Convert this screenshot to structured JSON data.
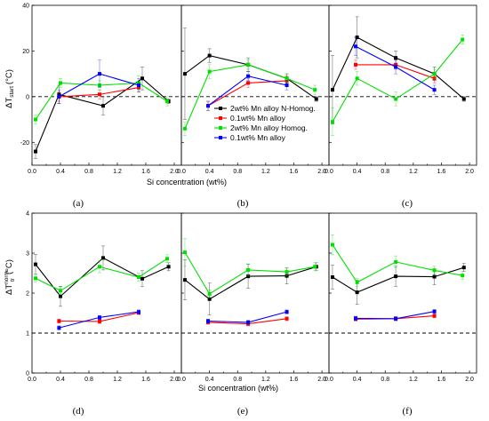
{
  "figure": {
    "top_ylabel": "ΔT",
    "top_ylabel_sub": "start",
    "top_ylabel_unit": "(°C)",
    "bottom_ylabel": "ΔT",
    "bottom_ylabel_sup": "norm",
    "bottom_ylabel_sub": "tr",
    "bottom_ylabel_unit": "(°C)",
    "xlabel": "Si concentration (wt%)",
    "panel_labels": [
      "(a)",
      "(b)",
      "(c)",
      "(d)",
      "(e)",
      "(f)"
    ]
  },
  "colors": {
    "2wt% Mn alloy N-Homog.": "#000000",
    "0.1wt% Mn alloy": "#ff0000",
    "2wt% Mn alloy Homog.": "#00e000",
    "0.1wt% Mn alloy ": "#0000ff"
  },
  "legend": {
    "entries": [
      {
        "label": "2wt% Mn alloy N-Homog.",
        "color": "#000000"
      },
      {
        "label": "0.1wt% Mn alloy",
        "color": "#ff0000"
      },
      {
        "label": "2wt% Mn alloy Homog.",
        "color": "#00e000"
      },
      {
        "label": "0.1wt% Mn alloy",
        "color": "#0000ff"
      }
    ],
    "placement": "panel (b), lower-center"
  },
  "chart_data": [
    {
      "type": "line",
      "panel": "a",
      "xlim": [
        0,
        2.1
      ],
      "ylim": [
        -30,
        40
      ],
      "xticks": [
        0.0,
        0.4,
        0.8,
        1.2,
        1.6,
        2.0
      ],
      "xtick_labels": [
        "0.0",
        "0.4",
        "0.8",
        "1.2",
        "1.6",
        "2.0"
      ],
      "yticks": [
        -20,
        0,
        20,
        40
      ],
      "ytick_labels": [
        "-20",
        "0",
        "20",
        "40"
      ],
      "reference_line": 0,
      "series": [
        {
          "color": "#000000",
          "x": [
            0.05,
            0.38,
            1.0,
            1.55,
            1.92
          ],
          "y": [
            -24,
            1,
            -4,
            8,
            -2
          ],
          "err": [
            3,
            4,
            4,
            5,
            1
          ]
        },
        {
          "color": "#ff0000",
          "x": [
            0.38,
            0.95,
            1.5
          ],
          "y": [
            0,
            1,
            4
          ],
          "err": [
            2,
            2,
            2
          ]
        },
        {
          "color": "#00e000",
          "x": [
            0.05,
            0.4,
            0.95,
            1.5,
            1.9
          ],
          "y": [
            -10,
            6,
            5,
            6,
            -2
          ],
          "err": [
            2,
            2,
            2,
            3,
            2
          ]
        },
        {
          "color": "#0000ff",
          "x": [
            0.38,
            0.95,
            1.5
          ],
          "y": [
            0,
            10,
            5
          ],
          "err": [
            3,
            6,
            3
          ]
        }
      ]
    },
    {
      "type": "line",
      "panel": "b",
      "xlim": [
        0,
        2.1
      ],
      "ylim": [
        -30,
        40
      ],
      "xticks": [
        0.0,
        0.4,
        0.8,
        1.2,
        1.6,
        2.0
      ],
      "xtick_labels": [
        "0.0",
        "0.4",
        "0.8",
        "1.2",
        "1.6",
        "2.0"
      ],
      "yticks": [
        -20,
        0,
        20,
        40
      ],
      "ytick_labels": [],
      "reference_line": 0,
      "series": [
        {
          "color": "#000000",
          "x": [
            0.05,
            0.4,
            0.95,
            1.5,
            1.92
          ],
          "y": [
            10,
            18,
            14,
            8,
            -1
          ],
          "err": [
            20,
            3,
            3,
            2,
            1
          ]
        },
        {
          "color": "#ff0000",
          "x": [
            0.38,
            0.95,
            1.5
          ],
          "y": [
            -4,
            6,
            7
          ],
          "err": [
            2,
            2,
            2
          ]
        },
        {
          "color": "#00e000",
          "x": [
            0.05,
            0.4,
            0.95,
            1.5,
            1.9
          ],
          "y": [
            -14,
            11,
            14,
            8,
            3
          ],
          "err": [
            3,
            3,
            2,
            2,
            2
          ]
        },
        {
          "color": "#0000ff",
          "x": [
            0.38,
            0.95,
            1.5
          ],
          "y": [
            -4,
            9,
            5
          ],
          "err": [
            2,
            2,
            2
          ]
        }
      ]
    },
    {
      "type": "line",
      "panel": "c",
      "xlim": [
        0,
        2.1
      ],
      "ylim": [
        -30,
        40
      ],
      "xticks": [
        0.0,
        0.4,
        0.8,
        1.2,
        1.6,
        2.0
      ],
      "xtick_labels": [
        "0.0",
        "0.4",
        "0.8",
        "1.2",
        "1.6",
        "2.0"
      ],
      "yticks": [
        -20,
        0,
        20,
        40
      ],
      "ytick_labels": [],
      "reference_line": 0,
      "series": [
        {
          "color": "#000000",
          "x": [
            0.05,
            0.4,
            0.95,
            1.5,
            1.92
          ],
          "y": [
            3,
            26,
            17,
            10,
            -1
          ],
          "err": [
            15,
            9,
            3,
            3,
            1
          ]
        },
        {
          "color": "#ff0000",
          "x": [
            0.38,
            0.95,
            1.5
          ],
          "y": [
            14,
            14,
            8
          ],
          "err": [
            2,
            2,
            2
          ]
        },
        {
          "color": "#00e000",
          "x": [
            0.05,
            0.4,
            0.95,
            1.5,
            1.9
          ],
          "y": [
            -11,
            8,
            -1,
            10,
            25
          ],
          "err": [
            6,
            3,
            3,
            2,
            2
          ]
        },
        {
          "color": "#0000ff",
          "x": [
            0.38,
            0.95,
            1.5
          ],
          "y": [
            22,
            13,
            3
          ],
          "err": [
            4,
            3,
            2
          ]
        }
      ]
    },
    {
      "type": "line",
      "panel": "d",
      "xlim": [
        0,
        2.1
      ],
      "ylim": [
        0,
        4
      ],
      "xticks": [
        0.0,
        0.4,
        0.8,
        1.2,
        1.6,
        2.0
      ],
      "xtick_labels": [
        "0.0",
        "0.4",
        "0.8",
        "1.2",
        "1.6",
        "2.0"
      ],
      "yticks": [
        0,
        1,
        2,
        3,
        4
      ],
      "ytick_labels": [
        "0",
        "1",
        "2",
        "3",
        "4"
      ],
      "reference_line": 1,
      "series": [
        {
          "color": "#000000",
          "x": [
            0.05,
            0.4,
            1.0,
            1.55,
            1.92
          ],
          "y": [
            2.72,
            1.92,
            2.88,
            2.36,
            2.66
          ],
          "err": [
            0.25,
            0.25,
            0.3,
            0.2,
            0.1
          ]
        },
        {
          "color": "#ff0000",
          "x": [
            0.38,
            0.95,
            1.5
          ],
          "y": [
            1.3,
            1.29,
            1.51
          ],
          "err": [
            0.05,
            0.05,
            0.05
          ]
        },
        {
          "color": "#00e000",
          "x": [
            0.05,
            0.4,
            0.95,
            1.5,
            1.9
          ],
          "y": [
            2.37,
            2.06,
            2.66,
            2.4,
            2.86
          ],
          "err": [
            0.1,
            0.1,
            0.15,
            0.1,
            0.1
          ]
        },
        {
          "color": "#0000ff",
          "x": [
            0.38,
            0.95,
            1.5
          ],
          "y": [
            1.13,
            1.39,
            1.53
          ],
          "err": [
            0.05,
            0.05,
            0.05
          ]
        }
      ]
    },
    {
      "type": "line",
      "panel": "e",
      "xlim": [
        0,
        2.1
      ],
      "ylim": [
        0,
        4
      ],
      "xticks": [
        0.0,
        0.4,
        0.8,
        1.2,
        1.6,
        2.0
      ],
      "xtick_labels": [
        "0.0",
        "0.4",
        "0.8",
        "1.2",
        "1.6",
        "2.0"
      ],
      "yticks": [
        0,
        1,
        2,
        3,
        4
      ],
      "ytick_labels": [],
      "reference_line": 1,
      "series": [
        {
          "color": "#000000",
          "x": [
            0.05,
            0.4,
            0.95,
            1.5,
            1.92
          ],
          "y": [
            2.33,
            1.85,
            2.42,
            2.43,
            2.66
          ],
          "err": [
            0.5,
            0.4,
            0.3,
            0.2,
            0.1
          ]
        },
        {
          "color": "#ff0000",
          "x": [
            0.38,
            0.95,
            1.5
          ],
          "y": [
            1.27,
            1.23,
            1.36
          ],
          "err": [
            0.05,
            0.05,
            0.05
          ]
        },
        {
          "color": "#00e000",
          "x": [
            0.05,
            0.4,
            0.95,
            1.5,
            1.9
          ],
          "y": [
            3.02,
            1.98,
            2.58,
            2.53,
            2.66
          ],
          "err": [
            0.35,
            0.1,
            0.15,
            0.1,
            0.1
          ]
        },
        {
          "color": "#0000ff",
          "x": [
            0.38,
            0.95,
            1.5
          ],
          "y": [
            1.3,
            1.27,
            1.53
          ],
          "err": [
            0.05,
            0.05,
            0.05
          ]
        }
      ]
    },
    {
      "type": "line",
      "panel": "f",
      "xlim": [
        0,
        2.1
      ],
      "ylim": [
        0,
        4
      ],
      "xticks": [
        0.0,
        0.4,
        0.8,
        1.2,
        1.6,
        2.0
      ],
      "xtick_labels": [
        "0.0",
        "0.4",
        "0.8",
        "1.2",
        "1.6",
        "2.0"
      ],
      "yticks": [
        0,
        1,
        2,
        3,
        4
      ],
      "ytick_labels": [],
      "reference_line": 1,
      "series": [
        {
          "color": "#000000",
          "x": [
            0.05,
            0.4,
            0.95,
            1.5,
            1.92
          ],
          "y": [
            2.4,
            2.02,
            2.42,
            2.41,
            2.64
          ],
          "err": [
            0.3,
            0.3,
            0.25,
            0.2,
            0.1
          ]
        },
        {
          "color": "#ff0000",
          "x": [
            0.38,
            0.95,
            1.5
          ],
          "y": [
            1.35,
            1.36,
            1.43
          ],
          "err": [
            0.05,
            0.05,
            0.05
          ]
        },
        {
          "color": "#00e000",
          "x": [
            0.05,
            0.4,
            0.95,
            1.5,
            1.9
          ],
          "y": [
            3.21,
            2.27,
            2.78,
            2.57,
            2.44
          ],
          "err": [
            0.25,
            0.1,
            0.15,
            0.1,
            0.1
          ]
        },
        {
          "color": "#0000ff",
          "x": [
            0.38,
            0.95,
            1.5
          ],
          "y": [
            1.37,
            1.36,
            1.54
          ],
          "err": [
            0.05,
            0.05,
            0.05
          ]
        }
      ]
    }
  ]
}
